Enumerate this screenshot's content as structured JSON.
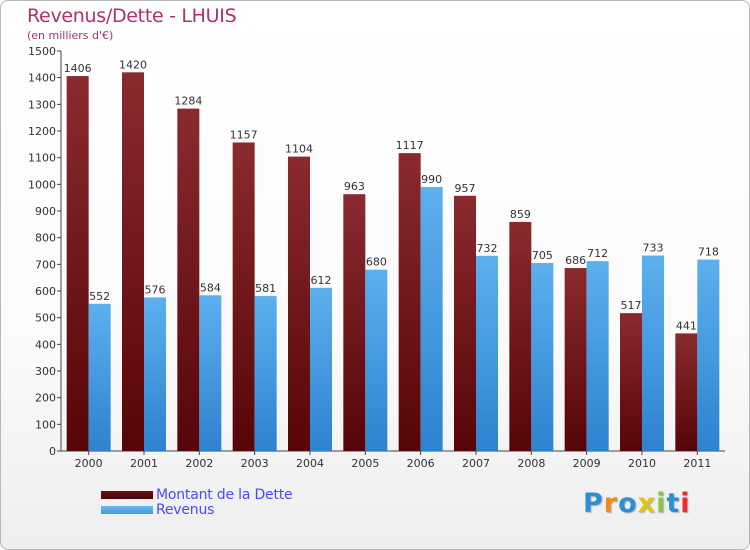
{
  "header": {
    "title": "Revenus/Dette - LHUIS",
    "subtitle": "(en milliers d'€)"
  },
  "chart_data": {
    "type": "bar",
    "categories": [
      "2000",
      "2001",
      "2002",
      "2003",
      "2004",
      "2005",
      "2006",
      "2007",
      "2008",
      "2009",
      "2010",
      "2011"
    ],
    "series": [
      {
        "name": "Montant de la Dette",
        "color": "#7a1f24",
        "values": [
          1406,
          1420,
          1284,
          1157,
          1104,
          963,
          1117,
          957,
          859,
          686,
          517,
          441
        ]
      },
      {
        "name": "Revenus",
        "color": "#4aa3e6",
        "values": [
          552,
          576,
          584,
          581,
          612,
          680,
          990,
          732,
          705,
          712,
          733,
          718
        ]
      }
    ],
    "ylim": [
      0,
      1500
    ],
    "yticks": [
      0,
      100,
      200,
      300,
      400,
      500,
      600,
      700,
      800,
      900,
      1000,
      1100,
      1200,
      1300,
      1400,
      1500
    ],
    "grid": false,
    "legend_position": "bottom-left"
  },
  "legend": {
    "items": [
      {
        "label": "Montant de la Dette",
        "color": "#6e0f14"
      },
      {
        "label": "Revenus",
        "color": "#3f9be3"
      }
    ]
  },
  "logo": {
    "letters": [
      "P",
      "r",
      "o",
      "x",
      "i",
      "t",
      "i"
    ],
    "colors": [
      "#2d8fd6",
      "#f08a1c",
      "#2d8fd6",
      "#e0c31a",
      "#8cc63f",
      "#2d8fd6",
      "#e8302a"
    ]
  }
}
